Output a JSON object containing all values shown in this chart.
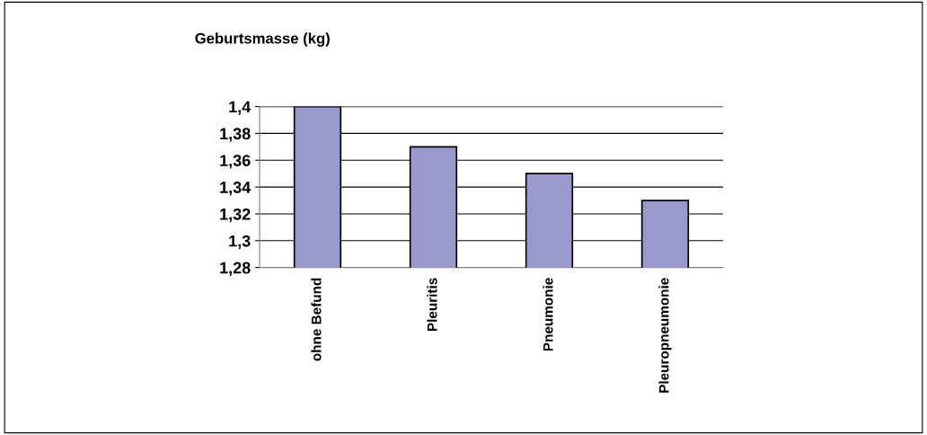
{
  "chart_data": {
    "type": "bar",
    "title": "Geburtsmasse (kg)",
    "categories": [
      "ohne Befund",
      "Pleuritis",
      "Pneumonie",
      "Pleuropneumonie"
    ],
    "values": [
      1.4,
      1.37,
      1.35,
      1.33
    ],
    "color": "#9999cc",
    "ylim": [
      1.28,
      1.4
    ],
    "yticks": [
      {
        "value": 1.28,
        "label": "1,28"
      },
      {
        "value": 1.3,
        "label": "1,3"
      },
      {
        "value": 1.32,
        "label": "1,32"
      },
      {
        "value": 1.34,
        "label": "1,34"
      },
      {
        "value": 1.36,
        "label": "1,36"
      },
      {
        "value": 1.38,
        "label": "1,38"
      },
      {
        "value": 1.4,
        "label": "1,4"
      }
    ],
    "grid": "y",
    "legend": false
  }
}
